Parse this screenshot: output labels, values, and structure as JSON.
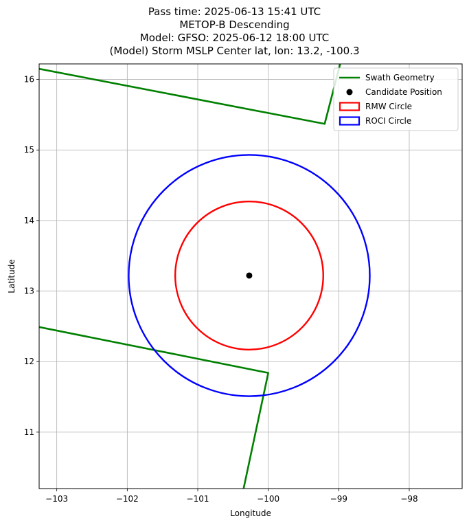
{
  "title_lines": [
    "Pass time: 2025-06-13 15:41 UTC",
    "METOP-B Descending",
    "Model: GFSO: 2025-06-12 18:00 UTC",
    "(Model) Storm MSLP Center lat, lon: 13.2, -100.3"
  ],
  "chart_data": {
    "type": "scatter",
    "xlabel": "Longitude",
    "ylabel": "Latitude",
    "xlim": [
      -103.25,
      -97.25
    ],
    "ylim": [
      10.2,
      16.22
    ],
    "x_ticks": [
      -103,
      -102,
      -101,
      -100,
      -99,
      -98
    ],
    "y_ticks": [
      11,
      12,
      13,
      14,
      15,
      16
    ],
    "grid": true,
    "legend_position": "top-right",
    "series": [
      {
        "name": "Swath Geometry",
        "kind": "line",
        "color": "#008000",
        "segments": [
          [
            [
              -103.25,
              16.15
            ],
            [
              -99.2,
              15.37
            ],
            [
              -98.98,
              16.22
            ]
          ],
          [
            [
              -100.35,
              10.2
            ],
            [
              -100.0,
              11.84
            ],
            [
              -103.25,
              12.49
            ]
          ]
        ]
      },
      {
        "name": "Candidate Position",
        "kind": "point",
        "color": "#000000",
        "points": [
          [
            -100.27,
            13.22
          ]
        ]
      },
      {
        "name": "RMW Circle",
        "kind": "circle",
        "color": "#ff0000",
        "center": [
          -100.27,
          13.22
        ],
        "radius_deg": 1.05
      },
      {
        "name": "ROCI Circle",
        "kind": "circle",
        "color": "#0000ff",
        "center": [
          -100.27,
          13.22
        ],
        "radius_deg": 1.71
      }
    ]
  }
}
